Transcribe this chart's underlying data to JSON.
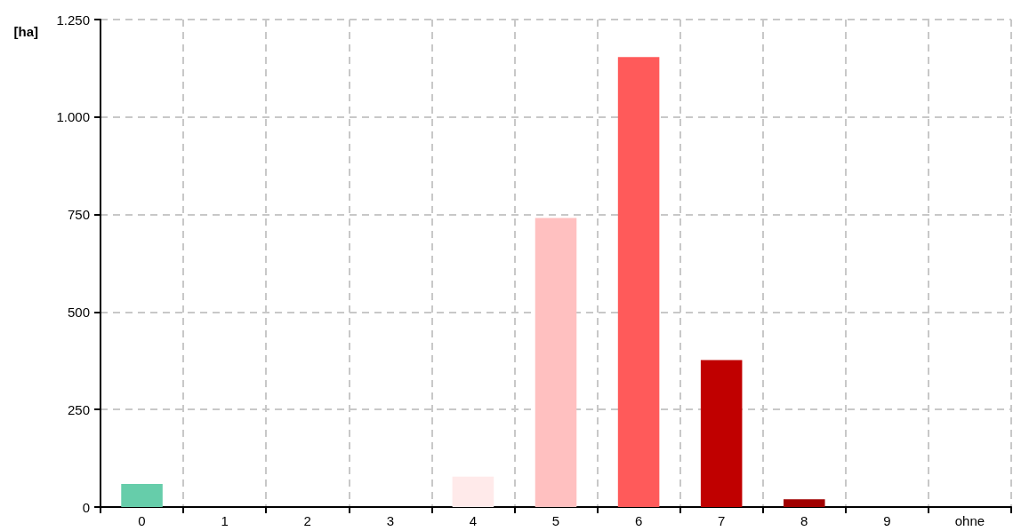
{
  "chart_data": {
    "type": "bar",
    "ylabel": "[ha]",
    "categories": [
      "0",
      "1",
      "2",
      "3",
      "4",
      "5",
      "6",
      "7",
      "8",
      "9",
      "ohne"
    ],
    "values": [
      59,
      0,
      0,
      0,
      78,
      741,
      1154,
      377,
      20,
      0,
      0
    ],
    "colors": [
      "#66cdaa",
      "#66cdaa",
      "#66cdaa",
      "#66cdaa",
      "#ffeaea",
      "#ffc0c0",
      "#ff5a5a",
      "#c00000",
      "#a00000",
      "#a00000",
      "#a00000"
    ],
    "ylim": [
      0,
      1250
    ],
    "yticks": [
      0,
      250,
      500,
      750,
      {
        "value": 1000,
        "label": "1.000"
      },
      {
        "value": 1250,
        "label": "1.250"
      }
    ],
    "grid": true
  }
}
